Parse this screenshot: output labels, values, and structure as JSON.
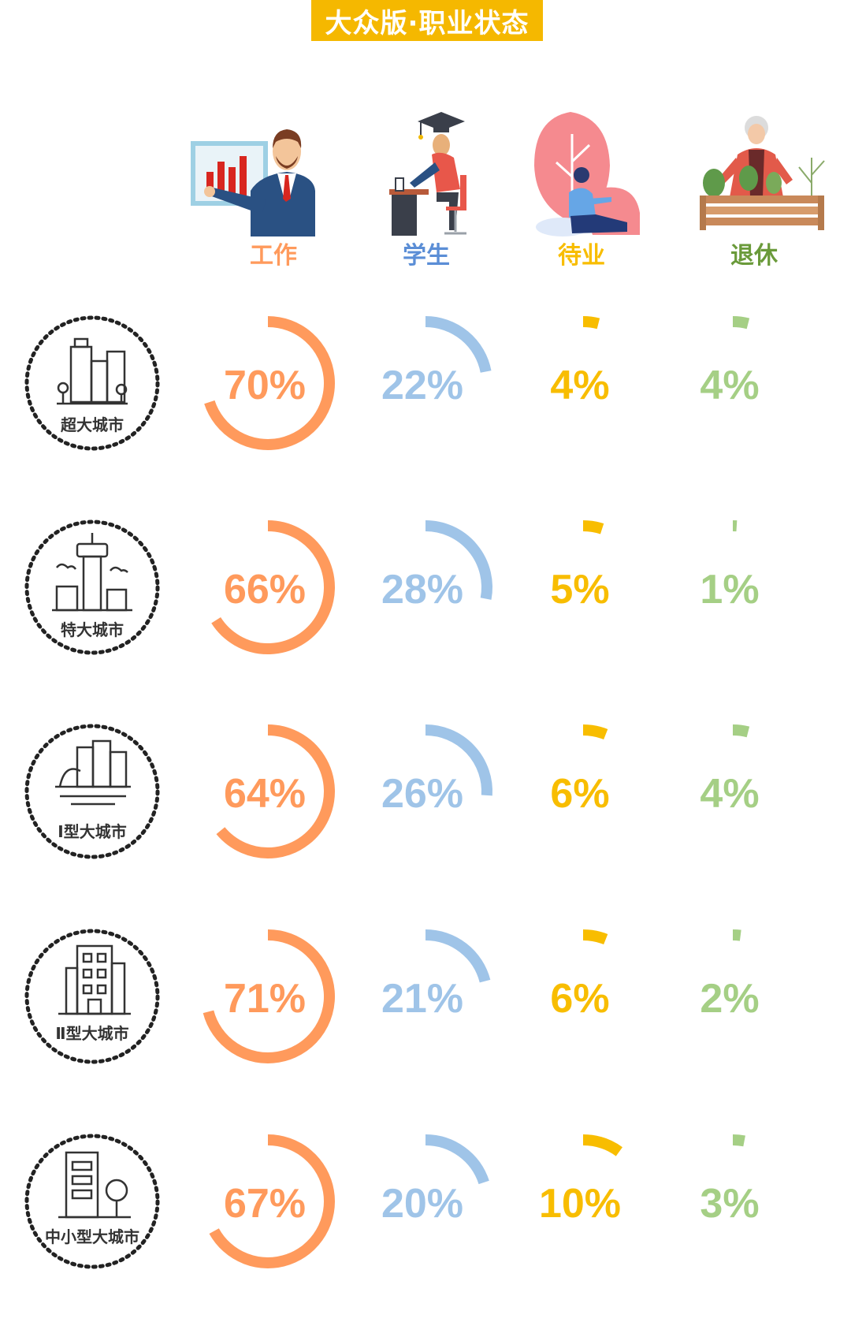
{
  "title": "大众版·职业状态",
  "colors": {
    "banner": "#f5b800",
    "work": "#ff9a5c",
    "student": "#9fc4e8",
    "unemployed": "#f8bd00",
    "retired": "#a5cf85"
  },
  "chart_data": {
    "type": "radial-progress-grid",
    "columns": [
      {
        "key": "work",
        "label": "工作",
        "label_color": "#ff9a5c",
        "icon": "presenter-man-icon"
      },
      {
        "key": "student",
        "label": "学生",
        "label_color": "#5b8ed6",
        "icon": "graduate-student-icon"
      },
      {
        "key": "unemployed",
        "label": "待业",
        "label_color": "#f8bd00",
        "icon": "sitting-person-icon"
      },
      {
        "key": "retired",
        "label": "退休",
        "label_color": "#6a9a3a",
        "icon": "elderly-gardener-icon"
      }
    ],
    "rows": [
      {
        "city": "超大城市",
        "icon": "skyscrapers-icon",
        "values": [
          70,
          22,
          4,
          4
        ],
        "labels": [
          "70%",
          "22%",
          "4%",
          "4%"
        ]
      },
      {
        "city": "特大城市",
        "icon": "tower-city-icon",
        "values": [
          66,
          28,
          5,
          1
        ],
        "labels": [
          "66%",
          "28%",
          "5%",
          "1%"
        ]
      },
      {
        "city": "Ⅰ型大城市",
        "icon": "waterfront-city-icon",
        "values": [
          64,
          26,
          6,
          4
        ],
        "labels": [
          "64%",
          "26%",
          "6%",
          "4%"
        ]
      },
      {
        "city": "Ⅱ型大城市",
        "icon": "office-building-icon",
        "values": [
          71,
          21,
          6,
          2
        ],
        "labels": [
          "71%",
          "21%",
          "6%",
          "2%"
        ]
      },
      {
        "city": "中小型大城市",
        "icon": "small-building-icon",
        "values": [
          67,
          20,
          10,
          3
        ],
        "labels": [
          "67%",
          "20%",
          "10%",
          "3%"
        ]
      }
    ]
  }
}
